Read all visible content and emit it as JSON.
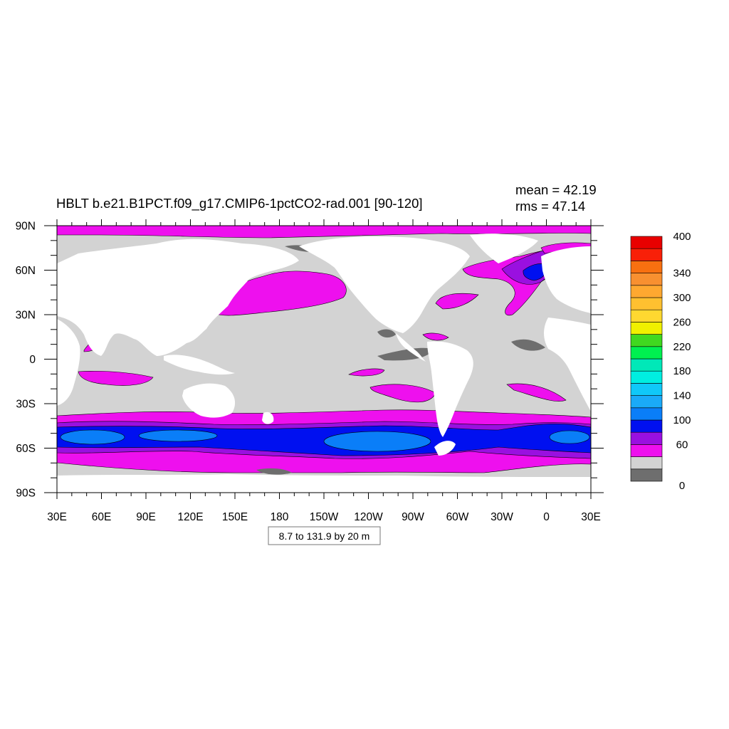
{
  "title": "HBLT b.e21.B1PCT.f09_g17.CMIP6-1pctCO2-rad.001 [90-120]",
  "stats": {
    "mean": "mean = 42.19",
    "rms": "rms = 47.14"
  },
  "contour_info": "8.7 to 131.9 by 20 m",
  "colors": {
    "land": "#ffffff",
    "missing": "#6e6e6e",
    "lowest_band": "#d3d3d3",
    "magenta": "#ee10ee",
    "purple": "#9a10e0",
    "blue": "#0010f0",
    "mid_blue": "#0a7ef8",
    "light_blue": "#1aaaf8"
  },
  "chart_data": {
    "type": "heatmap",
    "title": "HBLT b.e21.B1PCT.f09_g17.CMIP6-1pctCO2-rad.001 [90-120]",
    "x_ticks": [
      "30E",
      "60E",
      "90E",
      "120E",
      "150E",
      "180",
      "150W",
      "120W",
      "90W",
      "60W",
      "30W",
      "0",
      "30E"
    ],
    "y_ticks": [
      "90N",
      "60N",
      "30N",
      "0",
      "30S",
      "60S",
      "90S"
    ],
    "xlim_deg_east": [
      30,
      390
    ],
    "ylim_lat": [
      -90,
      90
    ],
    "colorbar": {
      "levels": [
        0,
        20,
        40,
        60,
        80,
        100,
        120,
        140,
        160,
        180,
        200,
        220,
        240,
        260,
        280,
        300,
        320,
        340,
        360,
        380,
        400
      ],
      "labels": [
        "0",
        "60",
        "100",
        "140",
        "180",
        "220",
        "260",
        "300",
        "340",
        "400"
      ],
      "colors": [
        "#6e6e6e",
        "#d3d3d3",
        "#ee10ee",
        "#9a10e0",
        "#0010f0",
        "#0a7ef8",
        "#1aaaf8",
        "#10c8f8",
        "#00eee0",
        "#00e8b8",
        "#00f050",
        "#40d820",
        "#f0f000",
        "#ffd830",
        "#ffc030",
        "#ffa830",
        "#f89030",
        "#f87010",
        "#f82008",
        "#e80000"
      ]
    }
  }
}
